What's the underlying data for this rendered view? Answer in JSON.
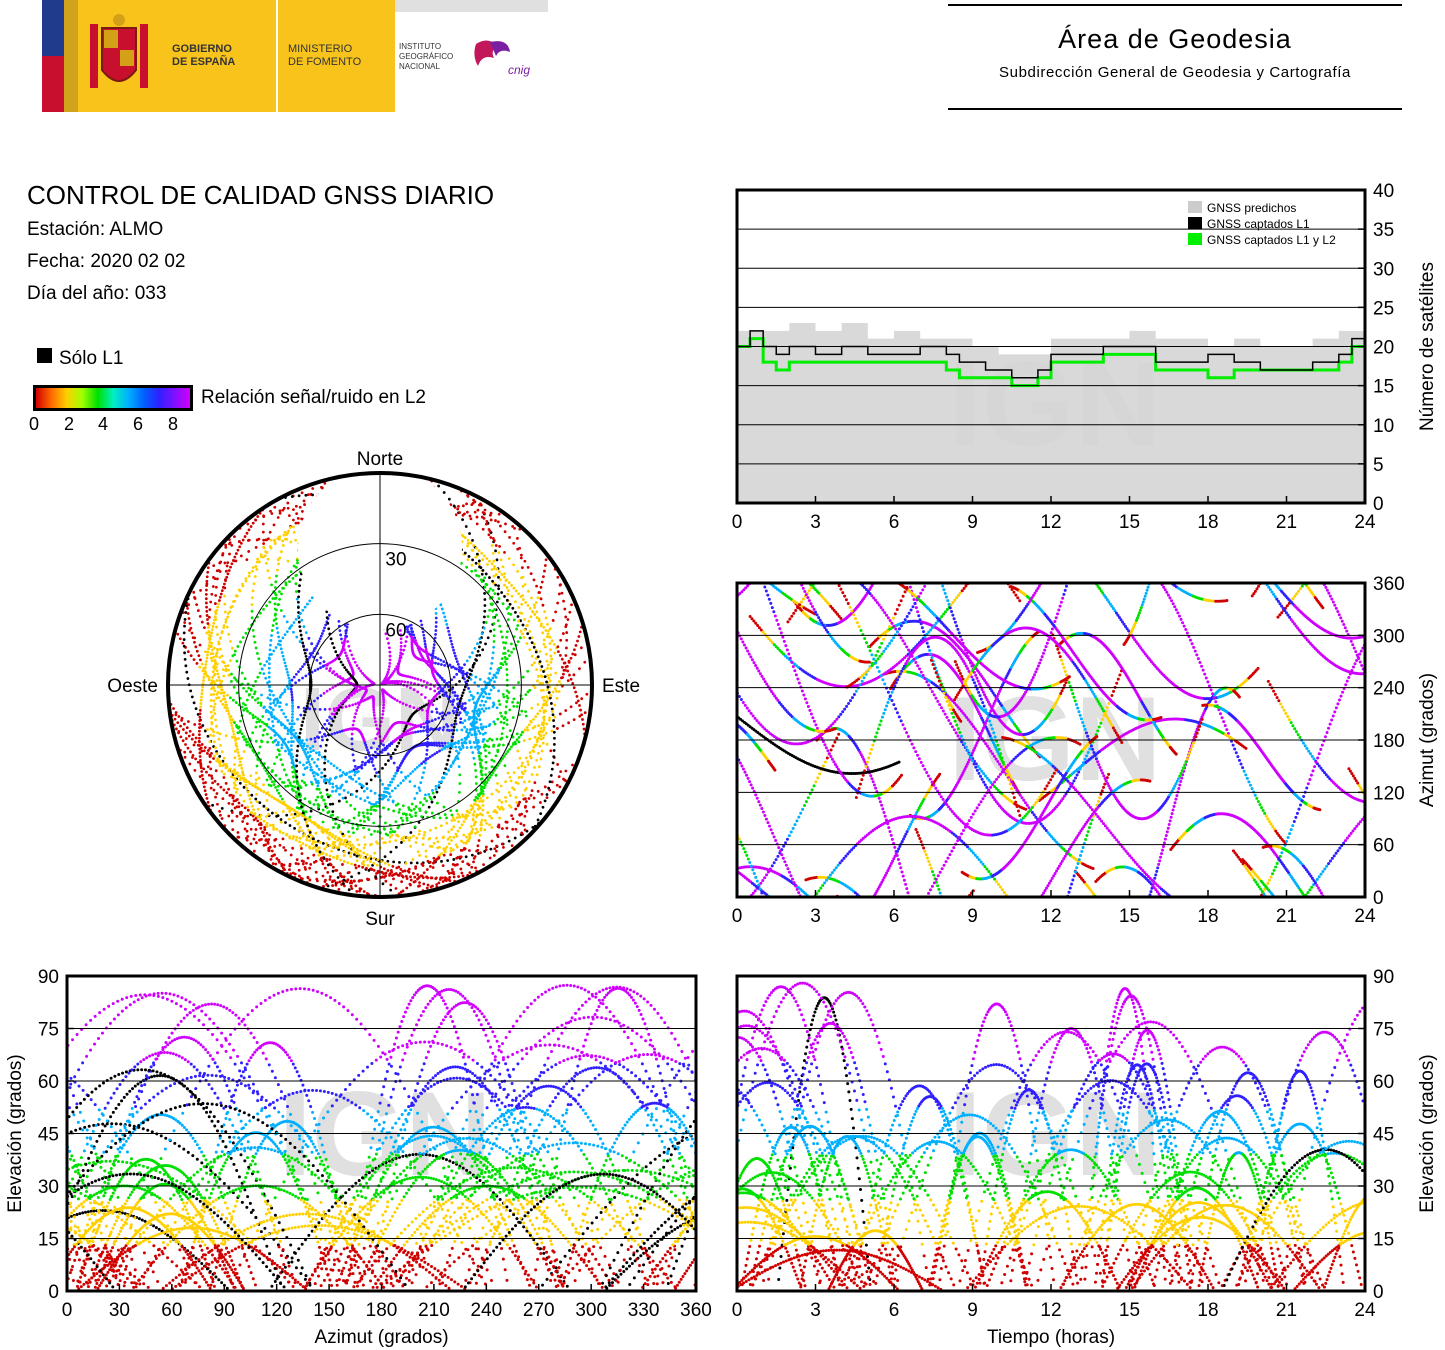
{
  "header": {
    "gov_line1": "GOBIERNO",
    "gov_line2": "DE ESPAÑA",
    "min_line1": "MINISTERIO",
    "min_line2": "DE FOMENTO",
    "ign_line1": "INSTITUTO",
    "ign_line2": "GEOGRÁFICO",
    "ign_line3": "NACIONAL",
    "cnig_logo_text": "cnig",
    "area_title": "Área de Geodesia",
    "area_subtitle": "Subdirección General de Geodesia y Cartografía"
  },
  "info": {
    "title": "CONTROL DE CALIDAD GNSS DIARIO",
    "station": "Estación: ALMO",
    "date": "Fecha: 2020 02 02",
    "doy": "Día del año: 033"
  },
  "legend": {
    "l1_only": "Sólo L1",
    "snr_label": "Relación señal/ruido en L2",
    "snr_ticks": [
      "0",
      "2",
      "4",
      "6",
      "8"
    ],
    "snr_colors": [
      "#d00000",
      "#ffd000",
      "#00e000",
      "#00b0ff",
      "#3020ff",
      "#d000ff"
    ]
  },
  "watermark": "IGN",
  "chart_data": [
    {
      "type": "polar-skyplot",
      "direction_labels": {
        "north": "Norte",
        "south": "Sur",
        "west": "Oeste",
        "east": "Este"
      },
      "elevation_rings": [
        "30",
        "60"
      ],
      "elevation_ring_values": [
        30,
        60
      ],
      "no_coverage": "northern sky hole above ~40° elevation"
    },
    {
      "type": "step-line",
      "xlim": [
        0,
        24
      ],
      "ylim": [
        0,
        40
      ],
      "x_ticks": [
        "0",
        "3",
        "6",
        "9",
        "12",
        "15",
        "18",
        "21",
        "24"
      ],
      "y_ticks": [
        "0",
        "5",
        "10",
        "15",
        "20",
        "25",
        "30",
        "35",
        "40"
      ],
      "ylabel": "Número de satélites",
      "legend_position": "top-right",
      "series": [
        {
          "name": "GNSS predichos",
          "color": "#cccccc",
          "x": [
            0,
            1,
            2,
            3,
            4,
            5,
            6,
            7,
            8,
            9,
            10,
            11,
            12,
            13,
            14,
            15,
            16,
            17,
            18,
            19,
            20,
            21,
            22,
            23,
            24
          ],
          "values": [
            22,
            22,
            23,
            22,
            23,
            21,
            22,
            21,
            21,
            20,
            19,
            19,
            21,
            21,
            21,
            22,
            21,
            21,
            20,
            21,
            20,
            20,
            21,
            22,
            23
          ]
        },
        {
          "name": "GNSS captados L1",
          "color": "#000000",
          "x": [
            0,
            0.5,
            1,
            1.5,
            2,
            3,
            4,
            5,
            6,
            7,
            8,
            8.5,
            9,
            9.5,
            10,
            10.5,
            11,
            11.5,
            12,
            13,
            14,
            15,
            16,
            17,
            18,
            19,
            20,
            21,
            22,
            23,
            23.5,
            24
          ],
          "values": [
            20,
            22,
            20,
            19,
            20,
            19,
            20,
            19,
            19,
            20,
            19,
            18,
            18,
            17,
            17,
            16,
            16,
            17,
            19,
            19,
            20,
            20,
            18,
            18,
            19,
            18,
            17,
            17,
            18,
            19,
            21,
            21
          ]
        },
        {
          "name": "GNSS captados L1 y L2",
          "color": "#00ee00",
          "x": [
            0,
            0.5,
            1,
            1.5,
            2,
            3,
            4,
            5,
            6,
            7,
            8,
            8.5,
            9,
            9.5,
            10,
            10.5,
            11,
            11.5,
            12,
            13,
            14,
            15,
            16,
            17,
            18,
            19,
            20,
            21,
            22,
            23,
            23.5,
            24
          ],
          "values": [
            20,
            21,
            18,
            17,
            18,
            18,
            18,
            18,
            18,
            18,
            17,
            16,
            16,
            16,
            16,
            15,
            15,
            16,
            18,
            18,
            19,
            19,
            17,
            17,
            16,
            17,
            17,
            17,
            17,
            18,
            20,
            20
          ]
        }
      ]
    },
    {
      "type": "scatter",
      "xlim": [
        0,
        24
      ],
      "ylim": [
        0,
        360
      ],
      "x_ticks": [
        "0",
        "3",
        "6",
        "9",
        "12",
        "15",
        "18",
        "21",
        "24"
      ],
      "y_ticks": [
        "0",
        "60",
        "120",
        "180",
        "240",
        "300",
        "360"
      ],
      "ylabel": "Azimut (grados)",
      "description": "satellite azimuth tracks over 24 h colored by L2 SNR"
    },
    {
      "type": "scatter",
      "xlim": [
        0,
        360
      ],
      "ylim": [
        0,
        90
      ],
      "x_ticks": [
        "0",
        "30",
        "60",
        "90",
        "120",
        "150",
        "180",
        "210",
        "240",
        "270",
        "300",
        "330",
        "360"
      ],
      "y_ticks": [
        "0",
        "15",
        "30",
        "45",
        "60",
        "75",
        "90"
      ],
      "xlabel": "Azimut (grados)",
      "ylabel": "Elevación (grados)",
      "description": "satellite elevation vs azimuth colored by L2 SNR"
    },
    {
      "type": "scatter",
      "xlim": [
        0,
        24
      ],
      "ylim": [
        0,
        90
      ],
      "x_ticks": [
        "0",
        "3",
        "6",
        "9",
        "12",
        "15",
        "18",
        "21",
        "24"
      ],
      "y_ticks": [
        "0",
        "15",
        "30",
        "45",
        "60",
        "75",
        "90"
      ],
      "xlabel": "Tiempo (horas)",
      "ylabel": "Elevación (grados)",
      "description": "satellite elevation over 24 h colored by L2 SNR"
    }
  ]
}
